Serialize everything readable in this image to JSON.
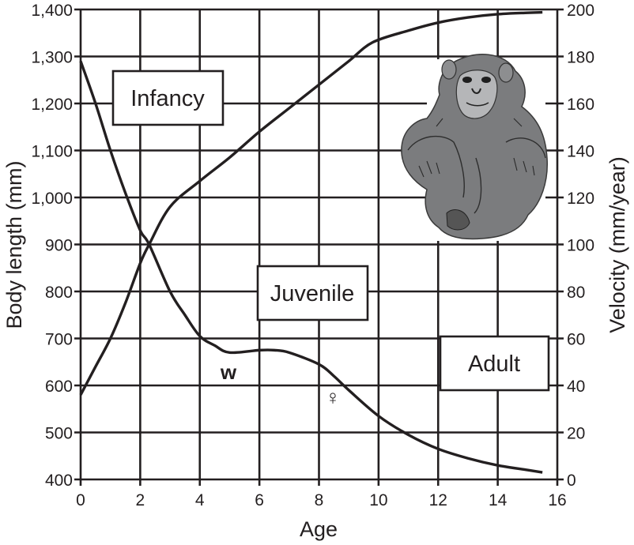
{
  "chart_data": {
    "type": "line",
    "title": "",
    "xlabel": "Age",
    "ylabel": "Body length (mm)",
    "y2label": "Velocity (mm/year)",
    "xlim": [
      0,
      16
    ],
    "ylim": [
      400,
      1400
    ],
    "y2lim": [
      0,
      200
    ],
    "grid": true,
    "x_ticks": [
      "0",
      "2",
      "4",
      "6",
      "8",
      "10",
      "12",
      "14",
      "16"
    ],
    "y_ticks": [
      "400",
      "500",
      "600",
      "700",
      "800",
      "900",
      "1,000",
      "1,100",
      "1,200",
      "1,300",
      "1,400"
    ],
    "y2_ticks": [
      "0",
      "20",
      "40",
      "60",
      "80",
      "100",
      "120",
      "140",
      "160",
      "180",
      "200"
    ],
    "series": [
      {
        "name": "Body length",
        "axis": "left",
        "x": [
          0,
          0.5,
          1,
          1.5,
          2,
          2.3,
          3,
          4,
          5,
          6,
          7,
          8,
          9,
          9.8,
          11,
          12,
          13,
          14,
          15,
          15.5
        ],
        "values": [
          580,
          640,
          700,
          775,
          860,
          900,
          980,
          1035,
          1085,
          1140,
          1190,
          1240,
          1290,
          1330,
          1355,
          1372,
          1383,
          1390,
          1393,
          1394
        ]
      },
      {
        "name": "Velocity",
        "axis": "right",
        "x": [
          0,
          0.5,
          1,
          1.5,
          2,
          2.3,
          3,
          3.5,
          4,
          4.5,
          5,
          6,
          6.5,
          7,
          8,
          8.5,
          9,
          10,
          11,
          12,
          13,
          14,
          15,
          15.5
        ],
        "values": [
          178,
          160,
          140,
          122,
          106,
          100,
          80,
          70,
          61,
          57,
          54,
          55,
          55,
          54,
          49,
          44,
          38,
          27,
          19,
          13,
          9,
          6,
          4,
          3
        ]
      }
    ],
    "annotations": [
      {
        "text": "Infancy",
        "type": "box"
      },
      {
        "text": "Juvenile",
        "type": "box"
      },
      {
        "text": "Adult",
        "type": "box"
      },
      {
        "text": "w",
        "x": 5,
        "y": 632
      },
      {
        "text": "♀",
        "x": 8.4,
        "y": 580
      }
    ],
    "legend": "none",
    "image": "chimpanzee-illustration"
  }
}
